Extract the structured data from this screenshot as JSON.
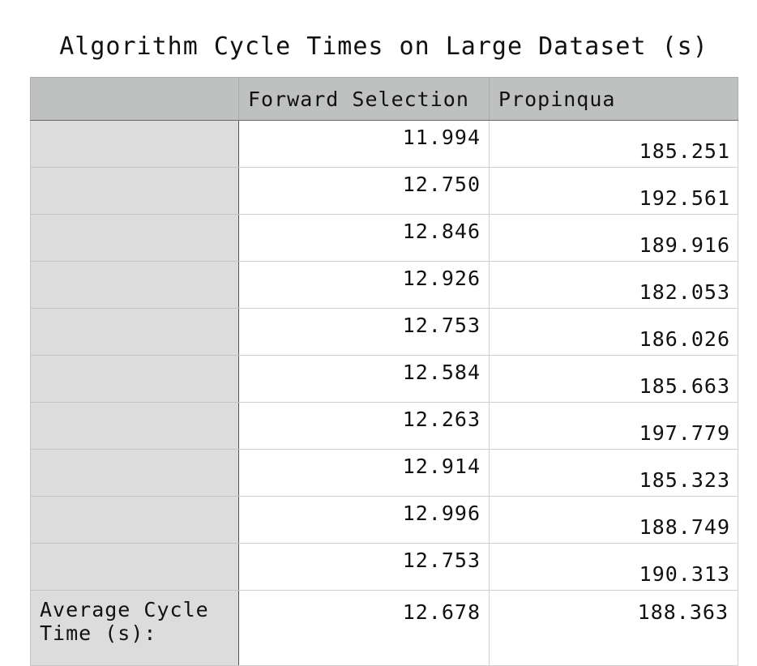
{
  "title": "Algorithm Cycle Times on Large Dataset (s)",
  "columns": [
    "",
    "Forward Selection",
    "Propinqua"
  ],
  "rows": [
    {
      "label": "",
      "forward_selection": "11.994",
      "propinqua": "185.251"
    },
    {
      "label": "",
      "forward_selection": "12.750",
      "propinqua": "192.561"
    },
    {
      "label": "",
      "forward_selection": "12.846",
      "propinqua": "189.916"
    },
    {
      "label": "",
      "forward_selection": "12.926",
      "propinqua": "182.053"
    },
    {
      "label": "",
      "forward_selection": "12.753",
      "propinqua": "186.026"
    },
    {
      "label": "",
      "forward_selection": "12.584",
      "propinqua": "185.663"
    },
    {
      "label": "",
      "forward_selection": "12.263",
      "propinqua": "197.779"
    },
    {
      "label": "",
      "forward_selection": "12.914",
      "propinqua": "185.323"
    },
    {
      "label": "",
      "forward_selection": "12.996",
      "propinqua": "188.749"
    },
    {
      "label": "",
      "forward_selection": "12.753",
      "propinqua": "190.313"
    }
  ],
  "average": {
    "label": "Average Cycle Time (s):",
    "forward_selection": "12.678",
    "propinqua": "188.363"
  },
  "colors": {
    "header_bg": "#bfc1c0",
    "label_bg": "#dcdcdc",
    "cell_bg": "#ffffff"
  }
}
